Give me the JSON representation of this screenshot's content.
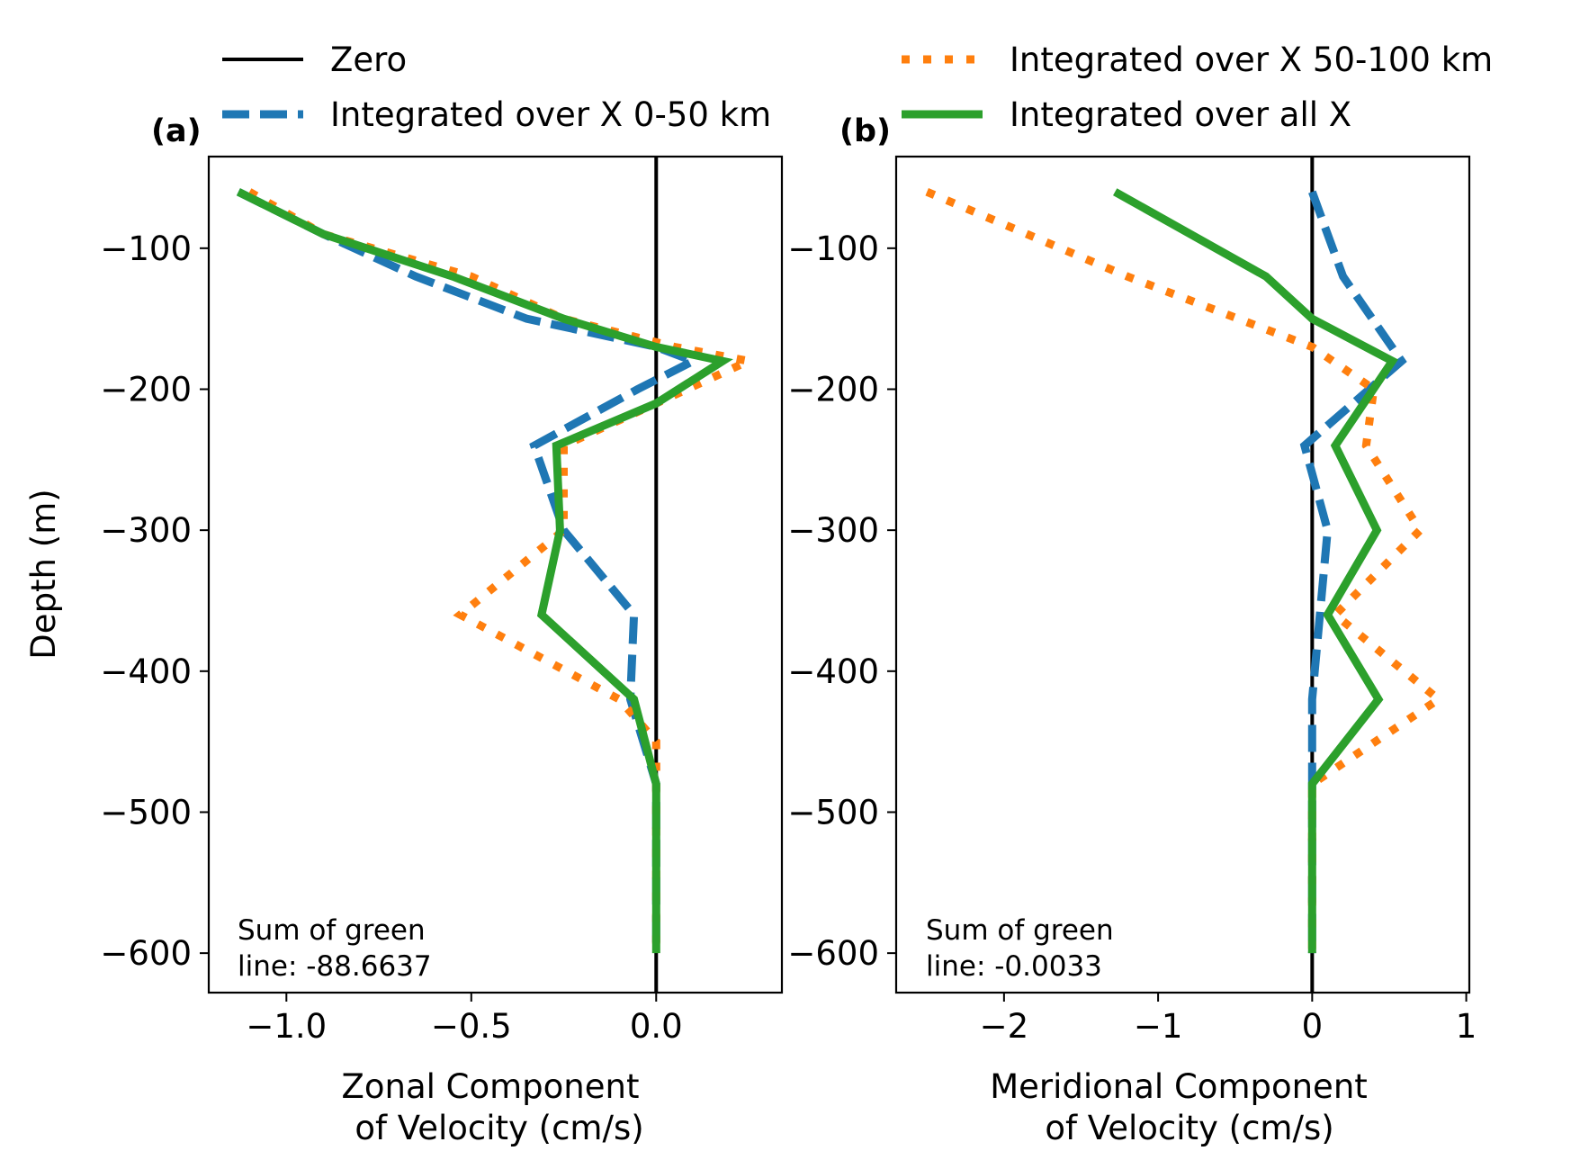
{
  "legend": {
    "entries": [
      {
        "label": "Zero",
        "series_key": "zero"
      },
      {
        "label": "Integrated over X 0-50 km",
        "series_key": "x0_50"
      },
      {
        "label": "Integrated over X 50-100 km",
        "series_key": "x50_100"
      },
      {
        "label": "Integrated over all X",
        "series_key": "all"
      }
    ]
  },
  "styles": {
    "zero": {
      "color": "#000000",
      "dash": "solid"
    },
    "x0_50": {
      "color": "#1f77b4",
      "dash": "dashed"
    },
    "x50_100": {
      "color": "#ff7f0e",
      "dash": "dotted"
    },
    "all": {
      "color": "#2ca02c",
      "dash": "solid"
    }
  },
  "chart_data": [
    {
      "type": "line",
      "panel_label": "(a)",
      "xlabel_line1": "Zonal Component",
      "xlabel_line2": "of Velocity (cm/s)",
      "ylabel": "Depth (m)",
      "xlim": [
        -1.21,
        0.34
      ],
      "ylim": [
        -628,
        -35
      ],
      "xticks": [
        -1.0,
        -0.5,
        0.0
      ],
      "xtick_labels": [
        "−1.0",
        "−0.5",
        "0.0"
      ],
      "yticks": [
        -100,
        -200,
        -300,
        -400,
        -500,
        -600
      ],
      "ytick_labels": [
        "−100",
        "−200",
        "−300",
        "−400",
        "−500",
        "−600"
      ],
      "annotation_line1": "Sum of green",
      "annotation_line2": "line: -88.6637",
      "series": [
        {
          "key": "x0_50",
          "name": "Integrated over X 0-50 km",
          "x": [
            -1.13,
            -0.9,
            -0.65,
            -0.35,
            0.0,
            0.1,
            -0.05,
            -0.33,
            -0.25,
            -0.06,
            -0.07,
            0.0,
            0.0,
            0.0,
            0.0,
            0.0,
            0.0,
            0.0
          ],
          "y": [
            -60,
            -90,
            -120,
            -150,
            -170,
            -180,
            -200,
            -240,
            -300,
            -360,
            -420,
            -480,
            -500,
            -520,
            -540,
            -560,
            -580,
            -600
          ]
        },
        {
          "key": "x50_100",
          "name": "Integrated over X 50-100 km",
          "x": [
            -1.1,
            -0.9,
            -0.5,
            -0.25,
            0.05,
            0.25,
            0.0,
            -0.25,
            -0.25,
            -0.53,
            -0.1,
            0.0,
            0.0,
            0.0,
            0.0,
            0.0,
            0.0,
            0.0,
            0.0
          ],
          "y": [
            -60,
            -90,
            -120,
            -150,
            -170,
            -180,
            -210,
            -240,
            -300,
            -360,
            -420,
            -450,
            -480,
            -500,
            -520,
            -540,
            -560,
            -580,
            -600
          ]
        },
        {
          "key": "all",
          "name": "Integrated over all X",
          "x": [
            -1.13,
            -0.9,
            -0.55,
            -0.25,
            0.0,
            0.18,
            0.0,
            -0.27,
            -0.26,
            -0.31,
            -0.06,
            0.0,
            0.0,
            0.0,
            0.0,
            0.0,
            0.0,
            0.0
          ],
          "y": [
            -60,
            -90,
            -120,
            -150,
            -170,
            -180,
            -210,
            -240,
            -300,
            -360,
            -420,
            -480,
            -500,
            -520,
            -540,
            -560,
            -580,
            -600
          ]
        }
      ]
    },
    {
      "type": "line",
      "panel_label": "(b)",
      "xlabel_line1": "Meridional Component",
      "xlabel_line2": "of Velocity (cm/s)",
      "xlim": [
        -2.7,
        1.02
      ],
      "ylim": [
        -628,
        -35
      ],
      "xticks": [
        -2,
        -1,
        0,
        1
      ],
      "xtick_labels": [
        "−2",
        "−1",
        "0",
        "1"
      ],
      "yticks": [
        -100,
        -200,
        -300,
        -400,
        -500,
        -600
      ],
      "ytick_labels": [
        "−100",
        "−200",
        "−300",
        "−400",
        "−500",
        "−600"
      ],
      "annotation_line1": "Sum of green",
      "annotation_line2": "line: -0.0033",
      "series": [
        {
          "key": "x0_50",
          "name": "Integrated over X 0-50 km",
          "x": [
            0.0,
            0.2,
            0.58,
            -0.05,
            0.1,
            0.05,
            0.0,
            0.0,
            0.0,
            0.0,
            0.0,
            0.0,
            0.0
          ],
          "y": [
            -60,
            -120,
            -180,
            -240,
            -300,
            -360,
            -420,
            -480,
            -500,
            -540,
            -560,
            -580,
            -600
          ]
        },
        {
          "key": "x50_100",
          "name": "Integrated over X 50-100 km",
          "x": [
            -2.5,
            -1.2,
            0.0,
            0.4,
            0.35,
            0.7,
            0.15,
            0.82,
            0.0,
            0.0,
            0.0,
            0.0,
            0.0,
            0.0
          ],
          "y": [
            -60,
            -120,
            -170,
            -200,
            -240,
            -300,
            -360,
            -420,
            -480,
            -500,
            -540,
            -560,
            -580,
            -600
          ]
        },
        {
          "key": "all",
          "name": "Integrated over all X",
          "x": [
            -1.28,
            -0.3,
            0.0,
            0.52,
            0.15,
            0.42,
            0.1,
            0.43,
            0.0,
            0.0,
            0.0,
            0.0,
            0.0,
            0.0
          ],
          "y": [
            -60,
            -120,
            -150,
            -180,
            -240,
            -300,
            -360,
            -420,
            -480,
            -500,
            -540,
            -560,
            -580,
            -600
          ]
        }
      ]
    }
  ]
}
